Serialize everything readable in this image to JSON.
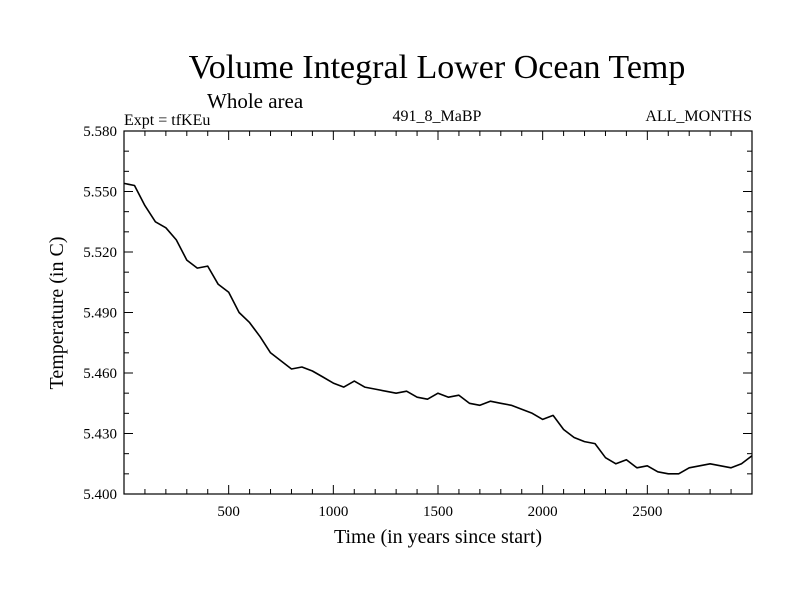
{
  "chart_data": {
    "type": "line",
    "title": "Volume Integral Lower Ocean Temp",
    "subtitle": "Whole area",
    "expt_label": "Expt = tfKEu",
    "center_label": "491_8_MaBP",
    "right_label": "ALL_MONTHS",
    "xlabel": "Time (in years since start)",
    "ylabel": "Temperature (in C)",
    "xlim": [
      0,
      3000
    ],
    "ylim": [
      5.4,
      5.58
    ],
    "x_ticks": [
      500,
      1000,
      1500,
      2000,
      2500
    ],
    "x_tick_labels": [
      "500",
      "1000",
      "1500",
      "2000",
      "2500"
    ],
    "y_ticks": [
      5.4,
      5.43,
      5.46,
      5.49,
      5.52,
      5.55,
      5.58
    ],
    "y_tick_labels": [
      "5.400",
      "5.430",
      "5.460",
      "5.490",
      "5.520",
      "5.550",
      "5.580"
    ],
    "series": [
      {
        "color": "#000000",
        "x": [
          0,
          50,
          100,
          150,
          200,
          250,
          300,
          350,
          400,
          450,
          500,
          550,
          600,
          650,
          700,
          750,
          800,
          850,
          900,
          950,
          1000,
          1050,
          1100,
          1150,
          1200,
          1250,
          1300,
          1350,
          1400,
          1450,
          1500,
          1550,
          1600,
          1650,
          1700,
          1750,
          1800,
          1850,
          1900,
          1950,
          2000,
          2050,
          2100,
          2150,
          2200,
          2250,
          2300,
          2350,
          2400,
          2450,
          2500,
          2550,
          2600,
          2650,
          2700,
          2750,
          2800,
          2850,
          2900,
          2950,
          3000
        ],
        "y": [
          5.554,
          5.553,
          5.543,
          5.535,
          5.532,
          5.526,
          5.516,
          5.512,
          5.513,
          5.504,
          5.5,
          5.49,
          5.485,
          5.478,
          5.47,
          5.466,
          5.462,
          5.463,
          5.461,
          5.458,
          5.455,
          5.453,
          5.456,
          5.453,
          5.452,
          5.451,
          5.45,
          5.451,
          5.448,
          5.447,
          5.45,
          5.448,
          5.449,
          5.445,
          5.444,
          5.446,
          5.445,
          5.444,
          5.442,
          5.44,
          5.437,
          5.439,
          5.432,
          5.428,
          5.426,
          5.425,
          5.418,
          5.415,
          5.417,
          5.413,
          5.414,
          5.411,
          5.41,
          5.41,
          5.413,
          5.414,
          5.415,
          5.414,
          5.413,
          5.415,
          5.419
        ]
      }
    ],
    "grid": false
  }
}
